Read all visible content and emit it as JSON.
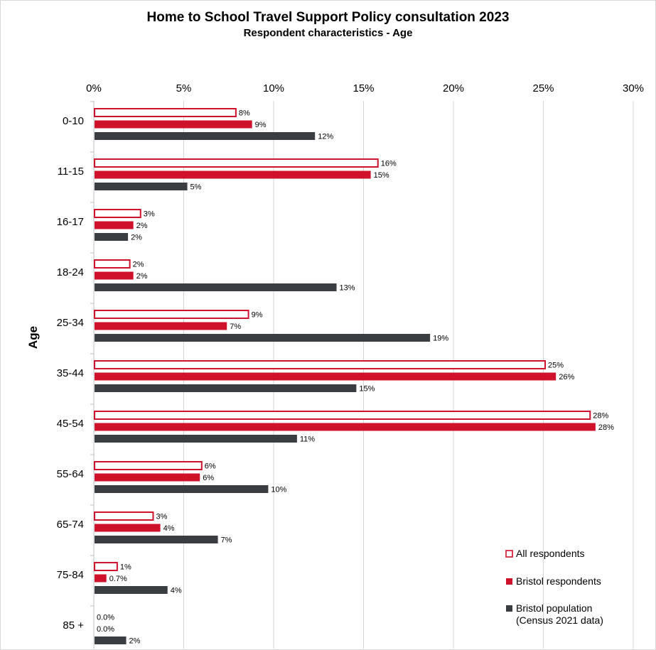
{
  "chart_data": {
    "type": "bar",
    "orientation": "horizontal",
    "title": "Home to School Travel Support Policy consultation 2023",
    "subtitle": "Respondent characteristics - Age",
    "ylabel": "Age",
    "xlabel": "",
    "xlim": [
      0,
      30
    ],
    "x_tick_labels": [
      "0%",
      "5%",
      "10%",
      "15%",
      "20%",
      "25%",
      "30%"
    ],
    "x_axis_position": "top",
    "grid": "vertical gridlines",
    "legend_position": "bottom-right",
    "categories": [
      "0-10",
      "11-15",
      "16-17",
      "18-24",
      "25-34",
      "35-44",
      "45-54",
      "55-64",
      "65-74",
      "75-84",
      "85 +"
    ],
    "series": [
      {
        "name": "All respondents",
        "style": "outline",
        "color": "#d0112b",
        "values": [
          7.9,
          15.8,
          2.6,
          2.0,
          8.6,
          25.1,
          27.6,
          6.0,
          3.3,
          1.3,
          0.0
        ],
        "labels": [
          "8%",
          "16%",
          "3%",
          "2%",
          "9%",
          "25%",
          "28%",
          "6%",
          "3%",
          "1%",
          "0.0%"
        ]
      },
      {
        "name": "Bristol respondents",
        "style": "filled",
        "color": "#d0112b",
        "values": [
          8.8,
          15.4,
          2.2,
          2.2,
          7.4,
          25.7,
          27.9,
          5.9,
          3.7,
          0.7,
          0.0
        ],
        "labels": [
          "9%",
          "15%",
          "2%",
          "2%",
          "7%",
          "26%",
          "28%",
          "6%",
          "4%",
          "0.7%",
          "0.0%"
        ]
      },
      {
        "name": "Bristol population\n(Census 2021 data)",
        "style": "filled",
        "color": "#3a3d42",
        "values": [
          12.3,
          5.2,
          1.9,
          13.5,
          18.7,
          14.6,
          11.3,
          9.7,
          6.9,
          4.1,
          1.8
        ],
        "labels": [
          "12%",
          "5%",
          "2%",
          "13%",
          "19%",
          "15%",
          "11%",
          "10%",
          "7%",
          "4%",
          "2%"
        ]
      }
    ]
  }
}
